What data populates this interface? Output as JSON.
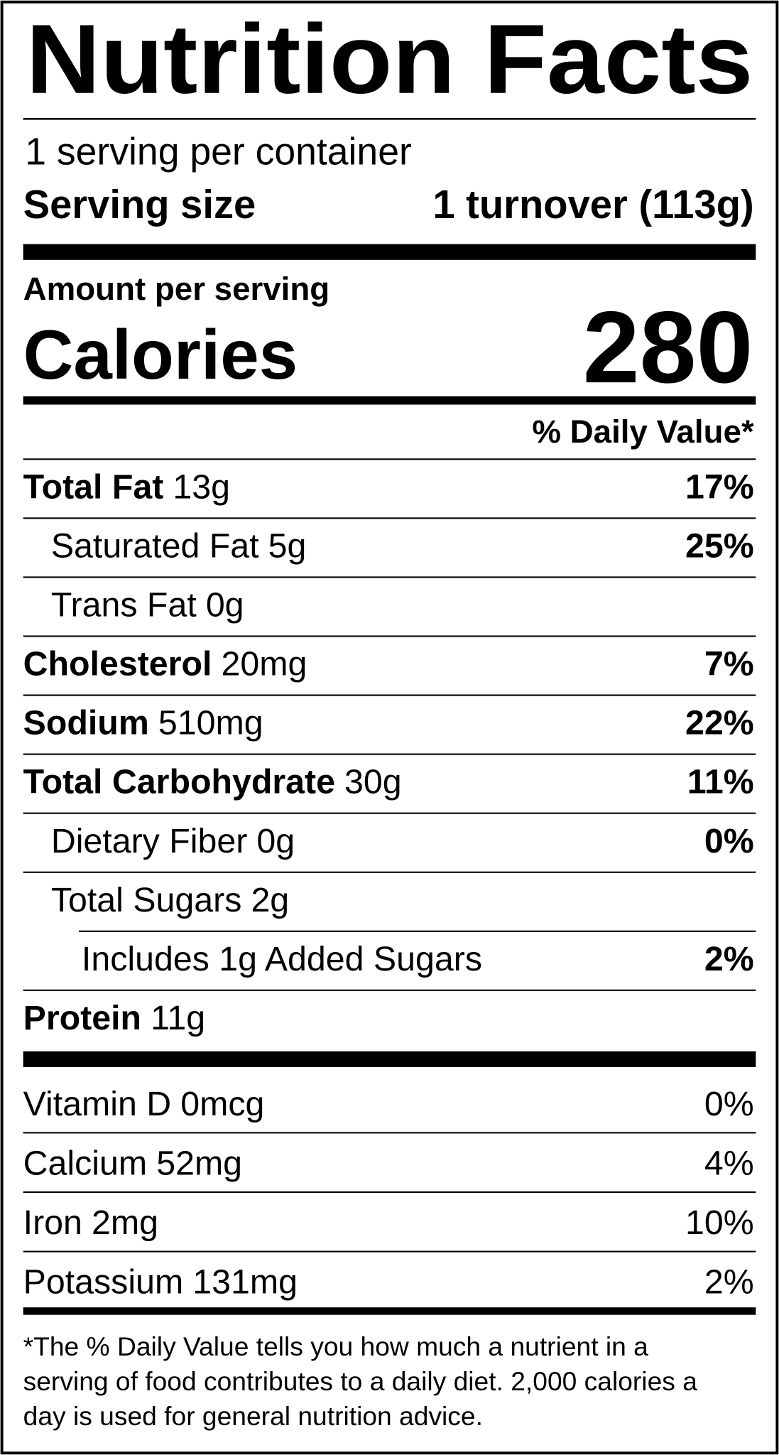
{
  "header": {
    "title": "Nutrition Facts",
    "servings": "1 serving per container",
    "serving_size_label": "Serving size",
    "serving_size": "1 turnover (113g)"
  },
  "calories": {
    "label": "Amount per serving",
    "name": "Calories",
    "value": "280"
  },
  "daily_value_header": "% Daily Value*",
  "nutrients": [
    {
      "name": "Total Fat",
      "amount": "13g",
      "dv": "17%",
      "sub": [
        {
          "name": "Saturated Fat",
          "amount": "5g",
          "dv": "25%"
        },
        {
          "name": "Trans Fat",
          "amount": "0g"
        }
      ]
    },
    {
      "name": "Cholesterol",
      "amount": "20mg",
      "dv": "7%"
    },
    {
      "name": "Sodium",
      "amount": "510mg",
      "dv": "22%"
    },
    {
      "name": "Total Carbohydrate",
      "amount": "30g",
      "dv": "11%",
      "sub": [
        {
          "name": "Dietary Fiber",
          "amount": "0g",
          "dv": "0%"
        },
        {
          "name": "Total Sugars",
          "amount": "2g",
          "sub": [
            {
              "name": "Includes 1g Added Sugars",
              "dv": "2%"
            }
          ]
        }
      ]
    },
    {
      "name": "Protein",
      "amount": "11g"
    }
  ],
  "vitamins": [
    {
      "name": "Vitamin D",
      "amount": "0mcg",
      "dv": "0%"
    },
    {
      "name": "Calcium",
      "amount": "52mg",
      "dv": "4%"
    },
    {
      "name": "Iron",
      "amount": "2mg",
      "dv": "10%"
    },
    {
      "name": "Potassium",
      "amount": "131mg",
      "dv": "2%"
    }
  ],
  "footnote": [
    "*The % Daily Value tells you how much a nutrient in a",
    "serving of food contributes to a daily diet. 2,000 calories a",
    "day is used for general nutrition advice."
  ]
}
